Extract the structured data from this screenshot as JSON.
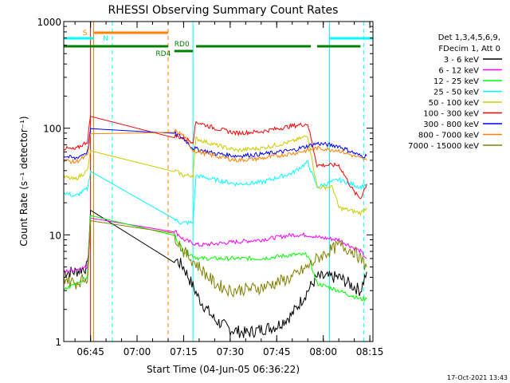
{
  "chart_data": {
    "type": "line",
    "title": "RHESSI Observing Summary Count Rates",
    "xlabel": "Start Time (04-Jun-05 06:36:22)",
    "ylabel": "Count Rate (s⁻¹ detector⁻¹)",
    "yscale": "log",
    "ylim": [
      1,
      1000
    ],
    "xlim": [
      "06:36:22",
      "08:16:00"
    ],
    "x_ticks": [
      "06:45",
      "07:00",
      "07:15",
      "07:30",
      "07:45",
      "08:00",
      "08:15"
    ],
    "y_ticks": [
      "1",
      "10",
      "100",
      "1000"
    ],
    "legend_title": [
      "Det 1,3,4,5,6,9,",
      "FDecim 1, Att 0"
    ],
    "legend_placement": "right",
    "timestamp": "17-Oct-2021 13:43",
    "flags": [
      {
        "label": "S",
        "color": "#ff8000",
        "segments": [
          [
            "06:46:00",
            "07:10:00"
          ]
        ]
      },
      {
        "label": "N",
        "color": "#00ffff",
        "segments": [
          [
            "06:36:22",
            "06:46:00"
          ],
          [
            "08:02:00",
            "08:16:00"
          ]
        ]
      },
      {
        "label": "RD0",
        "color": "#008000",
        "segments": [
          [
            "06:36:22",
            "07:10:00"
          ],
          [
            "07:19:00",
            "07:56:00"
          ],
          [
            "07:58:00",
            "08:12:00"
          ]
        ]
      },
      {
        "label": "RD4",
        "color": "#008000",
        "segments": [
          [
            "07:12:00",
            "07:18:00"
          ]
        ]
      }
    ],
    "night_markers": [
      {
        "time": "06:45:00",
        "color": "#ff0000"
      },
      {
        "time": "06:46:00",
        "color": "#ff8000"
      },
      {
        "time": "06:52:00",
        "color": "#00ffff",
        "dashed": true
      },
      {
        "time": "07:10:00",
        "color": "#ff8000",
        "dashed": true
      },
      {
        "time": "07:18:00",
        "color": "#00ffff"
      },
      {
        "time": "08:02:00",
        "color": "#00ffff"
      },
      {
        "time": "08:13:00",
        "color": "#00ffff",
        "dashed": true
      }
    ],
    "series": [
      {
        "name": "3 - 6 keV",
        "color": "#000000",
        "x": [
          "06:36:22",
          "06:40",
          "06:44",
          "06:45",
          "07:12",
          "07:15",
          "07:20",
          "07:25",
          "07:30",
          "07:35",
          "07:40",
          "07:45",
          "07:50",
          "07:55",
          "07:58",
          "08:05",
          "08:12",
          "08:14"
        ],
        "y": [
          4.5,
          4.5,
          5,
          15,
          6,
          5,
          2.5,
          1.6,
          1.3,
          1.2,
          1.3,
          1.4,
          1.8,
          3,
          4,
          4,
          3,
          4.5
        ]
      },
      {
        "name": "6 - 12 keV",
        "color": "#ff00ff",
        "x": [
          "06:36:22",
          "06:44",
          "06:45",
          "07:12",
          "07:15",
          "07:20",
          "07:30",
          "07:40",
          "07:50",
          "07:55",
          "07:58",
          "08:05",
          "08:12",
          "08:14"
        ],
        "y": [
          4.5,
          5,
          15,
          11,
          9,
          8,
          8.5,
          9,
          10,
          10,
          9.5,
          9,
          7,
          6
        ]
      },
      {
        "name": "12 - 25 keV",
        "color": "#00ff00",
        "x": [
          "06:36:22",
          "06:40",
          "06:44",
          "06:45",
          "07:12",
          "07:15",
          "07:20",
          "07:30",
          "07:40",
          "07:50",
          "07:55",
          "07:58",
          "08:05",
          "08:12",
          "08:14"
        ],
        "y": [
          3,
          3.5,
          4,
          15,
          10,
          7,
          6,
          6,
          6,
          6.5,
          6.5,
          3.5,
          3,
          2.5,
          2.5
        ]
      },
      {
        "name": "25 - 50 keV",
        "color": "#00ffff",
        "x": [
          "06:36:22",
          "06:40",
          "06:44",
          "06:45",
          "07:12",
          "07:14",
          "07:18",
          "07:19",
          "07:25",
          "07:32",
          "07:40",
          "07:50",
          "07:55",
          "07:58",
          "08:05",
          "08:12",
          "08:14"
        ],
        "y": [
          25,
          23,
          27,
          40,
          14,
          13,
          13,
          36,
          33,
          30,
          31,
          38,
          48,
          28,
          33,
          28,
          30
        ]
      },
      {
        "name": "50 - 100 keV",
        "color": "#cccc00",
        "x": [
          "06:36:22",
          "06:40",
          "06:44",
          "06:45",
          "07:12",
          "07:15",
          "07:18",
          "07:19",
          "07:25",
          "07:32",
          "07:40",
          "07:50",
          "07:55",
          "07:58",
          "08:03",
          "08:05",
          "08:12",
          "08:14"
        ],
        "y": [
          35,
          33,
          40,
          60,
          40,
          36,
          36,
          80,
          70,
          62,
          65,
          75,
          85,
          28,
          28,
          18,
          16,
          18
        ]
      },
      {
        "name": "100 - 300 keV",
        "color": "#ff0000",
        "x": [
          "06:36:22",
          "06:40",
          "06:44",
          "06:45",
          "07:12",
          "07:15",
          "07:18",
          "07:19",
          "07:25",
          "07:32",
          "07:40",
          "07:50",
          "07:55",
          "07:58",
          "08:05",
          "08:10",
          "08:12",
          "08:14"
        ],
        "y": [
          65,
          63,
          75,
          130,
          85,
          80,
          75,
          115,
          100,
          90,
          93,
          105,
          110,
          45,
          45,
          25,
          22,
          30
        ]
      },
      {
        "name": "300 - 800 keV",
        "color": "#0000ff",
        "x": [
          "06:36:22",
          "06:40",
          "06:44",
          "06:45",
          "07:12",
          "07:15",
          "07:18",
          "07:25",
          "07:32",
          "07:40",
          "07:50",
          "07:55",
          "07:58",
          "08:05",
          "08:12",
          "08:14"
        ],
        "y": [
          55,
          52,
          60,
          95,
          90,
          80,
          65,
          58,
          55,
          57,
          62,
          68,
          72,
          68,
          55,
          55
        ]
      },
      {
        "name": "800 - 7000 keV",
        "color": "#ff8000",
        "x": [
          "06:36:22",
          "06:40",
          "06:44",
          "06:45",
          "07:12",
          "07:15",
          "07:18",
          "07:25",
          "07:32",
          "07:40",
          "07:50",
          "07:55",
          "07:58",
          "08:05",
          "08:12",
          "08:14"
        ],
        "y": [
          50,
          48,
          55,
          85,
          95,
          85,
          62,
          55,
          50,
          52,
          58,
          62,
          65,
          62,
          52,
          50
        ]
      },
      {
        "name": "7000 - 15000 keV",
        "color": "#808000",
        "x": [
          "06:36:22",
          "06:40",
          "06:44",
          "06:45",
          "07:12",
          "07:15",
          "07:20",
          "07:25",
          "07:30",
          "07:40",
          "07:50",
          "07:55",
          "07:58",
          "08:05",
          "08:10",
          "08:14"
        ],
        "y": [
          4,
          3.5,
          4,
          12,
          10,
          7,
          5,
          3.5,
          3,
          3.2,
          4,
          5,
          6,
          8,
          7,
          5
        ]
      }
    ]
  }
}
